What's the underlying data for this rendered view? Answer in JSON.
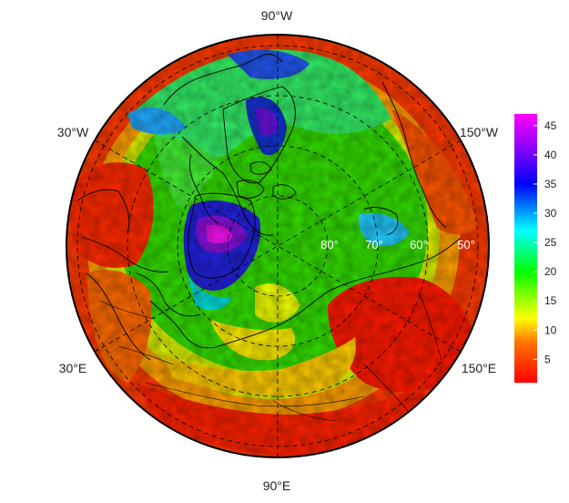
{
  "map": {
    "projection": "north-polar-stereographic",
    "graticule": "dashed",
    "longitude_labels": {
      "top": "90°W",
      "upper_left": "30°W",
      "upper_right": "150°W",
      "lower_left": "30°E",
      "lower_right": "150°E",
      "bottom": "90°E"
    },
    "latitude_labels": [
      "80°",
      "70°",
      "60°",
      "50°"
    ]
  },
  "colorbar": {
    "ticks": [
      {
        "value": 45,
        "label": "45"
      },
      {
        "value": 40,
        "label": "40"
      },
      {
        "value": 35,
        "label": "35"
      },
      {
        "value": 30,
        "label": "30"
      },
      {
        "value": 25,
        "label": "25"
      },
      {
        "value": 20,
        "label": "20"
      },
      {
        "value": 15,
        "label": "15"
      },
      {
        "value": 10,
        "label": "10"
      },
      {
        "value": 5,
        "label": "5"
      }
    ],
    "range": [
      1,
      47
    ],
    "stops": [
      {
        "value": 1,
        "color": "#ff0000"
      },
      {
        "value": 8,
        "color": "#ff7700"
      },
      {
        "value": 12,
        "color": "#ffff00"
      },
      {
        "value": 20,
        "color": "#00ff00"
      },
      {
        "value": 27,
        "color": "#00ffff"
      },
      {
        "value": 35,
        "color": "#0000ff"
      },
      {
        "value": 41,
        "color": "#8800ff"
      },
      {
        "value": 47,
        "color": "#ff00ff"
      }
    ]
  }
}
